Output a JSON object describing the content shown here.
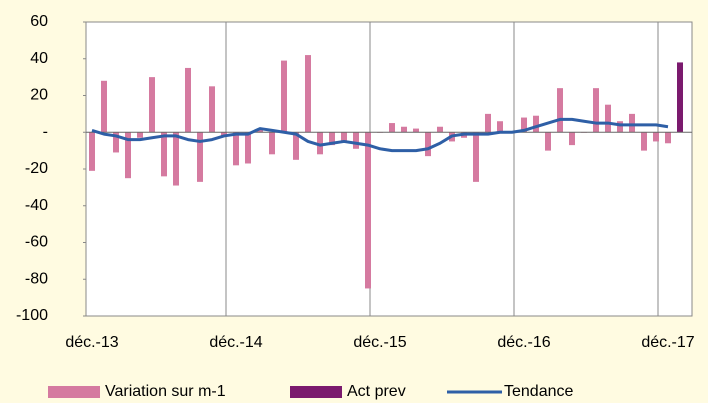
{
  "chart_data": {
    "type": "bar",
    "categories": [
      "déc.-13",
      null,
      null,
      null,
      null,
      null,
      null,
      null,
      null,
      null,
      null,
      null,
      "déc.-14",
      null,
      null,
      null,
      null,
      null,
      null,
      null,
      null,
      null,
      null,
      null,
      "déc.-15",
      null,
      null,
      null,
      null,
      null,
      null,
      null,
      null,
      null,
      null,
      null,
      "déc.-16",
      null,
      null,
      null,
      null,
      null,
      null,
      null,
      null,
      null,
      null,
      null,
      "déc.-17",
      null
    ],
    "series": [
      {
        "name": "Variation sur m-1",
        "type": "bar",
        "color": "#d57aa0",
        "values": [
          -21,
          28,
          -11,
          -25,
          -3,
          30,
          -24,
          -29,
          35,
          -27,
          25,
          -2,
          -18,
          -17,
          2,
          -12,
          39,
          -15,
          42,
          -12,
          -7,
          -5,
          -9,
          -85,
          0,
          5,
          3,
          2,
          -13,
          3,
          -5,
          -3,
          -27,
          10,
          6,
          0,
          8,
          9,
          -10,
          24,
          -7,
          0,
          24,
          15,
          6,
          10,
          -10,
          -5,
          -6,
          null
        ]
      },
      {
        "name": "Act prev",
        "type": "bar",
        "color": "#7b1a6e",
        "values": [
          null,
          null,
          null,
          null,
          null,
          null,
          null,
          null,
          null,
          null,
          null,
          null,
          null,
          null,
          null,
          null,
          null,
          null,
          null,
          null,
          null,
          null,
          null,
          null,
          null,
          null,
          null,
          null,
          null,
          null,
          null,
          null,
          null,
          null,
          null,
          null,
          null,
          null,
          null,
          null,
          null,
          null,
          null,
          null,
          null,
          null,
          null,
          null,
          null,
          38
        ]
      },
      {
        "name": "Tendance",
        "type": "line",
        "color": "#2e5fa6",
        "values": [
          1,
          -1,
          -2,
          -4,
          -4,
          -3,
          -2,
          -2,
          -4,
          -5,
          -4,
          -2,
          -1,
          -1,
          2,
          1,
          0,
          -1,
          -5,
          -7,
          -6,
          -5,
          -6,
          -7,
          -9,
          -10,
          -10,
          -10,
          -9,
          -6,
          -2,
          -1,
          -1,
          -1,
          0,
          0,
          1,
          3,
          5,
          7,
          7,
          6,
          5,
          5,
          4,
          4,
          4,
          4,
          3,
          null
        ]
      }
    ],
    "ylim": [
      -100,
      60
    ],
    "yticks": [
      -100,
      -80,
      -60,
      -40,
      -20,
      {
        "value": 0,
        "label": "-"
      },
      20,
      40,
      60
    ],
    "legend": "bottom"
  }
}
